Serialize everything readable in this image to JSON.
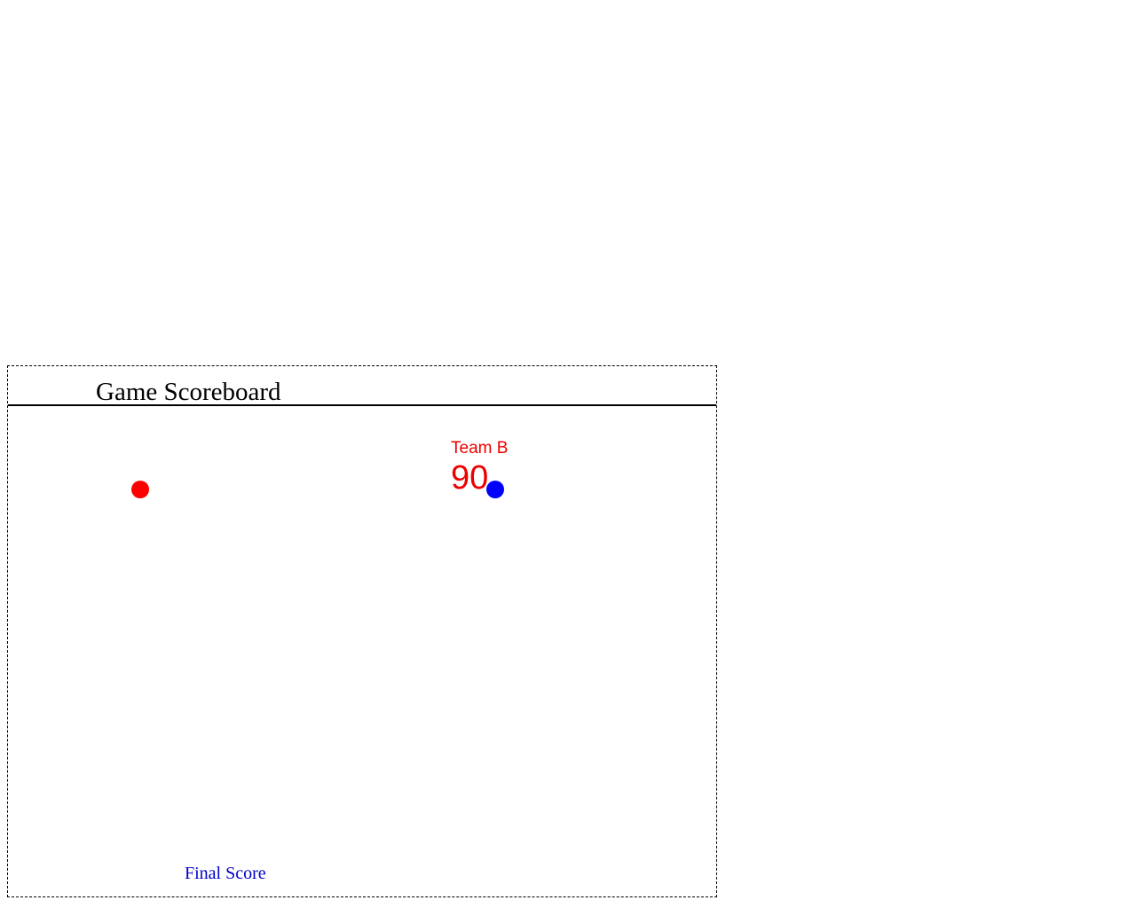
{
  "scoreboard": {
    "title": "Game Scoreboard",
    "team": {
      "name": "Team B",
      "score": "90",
      "color": "#ee0000"
    },
    "markers": [
      {
        "name": "red-marker",
        "color": "#ff0000"
      },
      {
        "name": "blue-marker",
        "color": "#0000ff"
      }
    ],
    "footer_label": "Final Score",
    "footer_color": "#0000cc"
  }
}
